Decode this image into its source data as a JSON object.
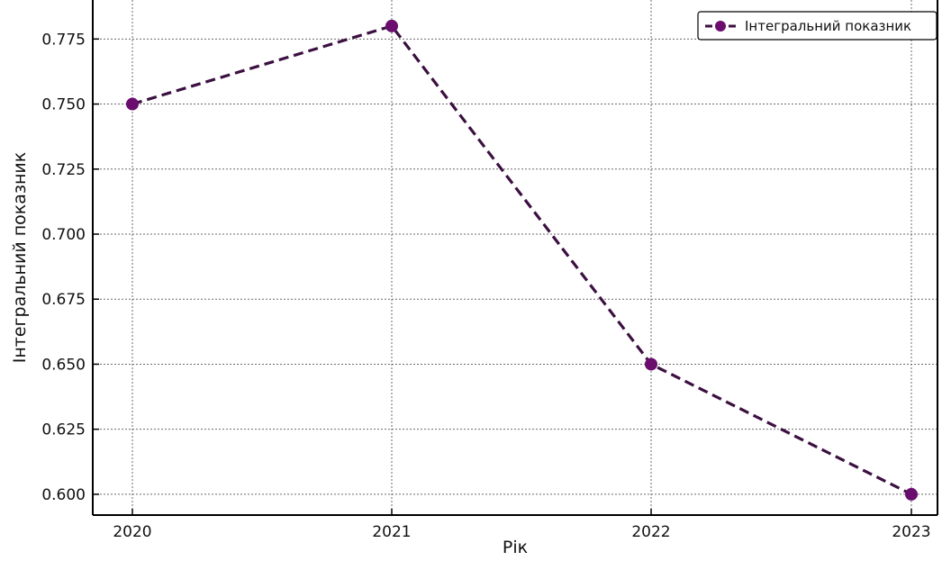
{
  "chart_data": {
    "type": "line",
    "title": "",
    "xlabel": "Рік",
    "ylabel": "Інтегральний показник",
    "x": [
      "2020",
      "2021",
      "2022",
      "2023"
    ],
    "series": [
      {
        "name": "Інтегральний показник",
        "values": [
          0.75,
          0.78,
          0.65,
          0.6
        ],
        "color": "#6a0d6e",
        "line_style": "dashed",
        "line_color": "#3b1040",
        "marker": "circle"
      }
    ],
    "ylim": [
      0.592,
      0.79
    ],
    "yticks": [
      "0.600",
      "0.625",
      "0.650",
      "0.675",
      "0.700",
      "0.725",
      "0.750",
      "0.775"
    ],
    "grid": true,
    "legend_position": "top-right"
  }
}
